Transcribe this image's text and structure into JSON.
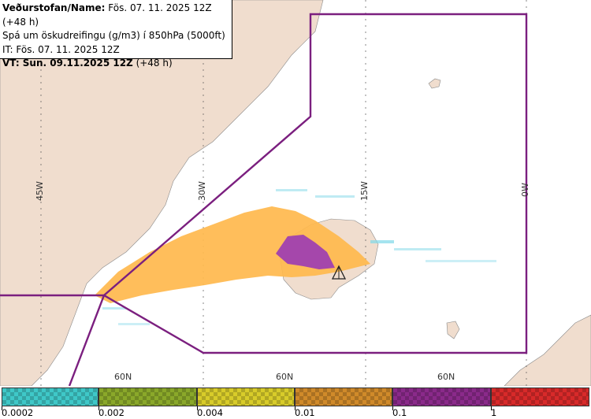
{
  "info": {
    "line1_bold": "Veðurstofan/Name:",
    "line1_rest": " Fös. 07. 11. 2025 12Z (+48 h)",
    "line2": "Spá um öskudreifingu (g/m3) í 850hPa (5000ft)",
    "line3": "IT: Fös. 07. 11. 2025 12Z",
    "line4_bold": "VT: Sun. 09.11.2025 12Z",
    "line4_rest": " (+48 h)"
  },
  "grid_labels": {
    "lon_45w": "45W",
    "lon_30w": "30W",
    "lon_15w": "15W",
    "lon_0w": "0W",
    "lat_60n_a": "60N",
    "lat_60n_b": "60N",
    "lat_60n_c": "60N"
  },
  "legend": {
    "labels": [
      "0.0002",
      "0.002",
      "0.004",
      "0.01",
      "0.1",
      "1"
    ],
    "colors": [
      "#3fc8c8",
      "#8aa82a",
      "#d8cc2a",
      "#d08a2a",
      "#8a2a8a",
      "#d82a2a"
    ]
  },
  "colors": {
    "land": "#f0ddce",
    "sea": "#ffffff",
    "fir_boundary": "#7b1f7f",
    "ash_low": "#ffb84d",
    "ash_high": "#a040b0",
    "speckle": "#7fd8e8"
  }
}
